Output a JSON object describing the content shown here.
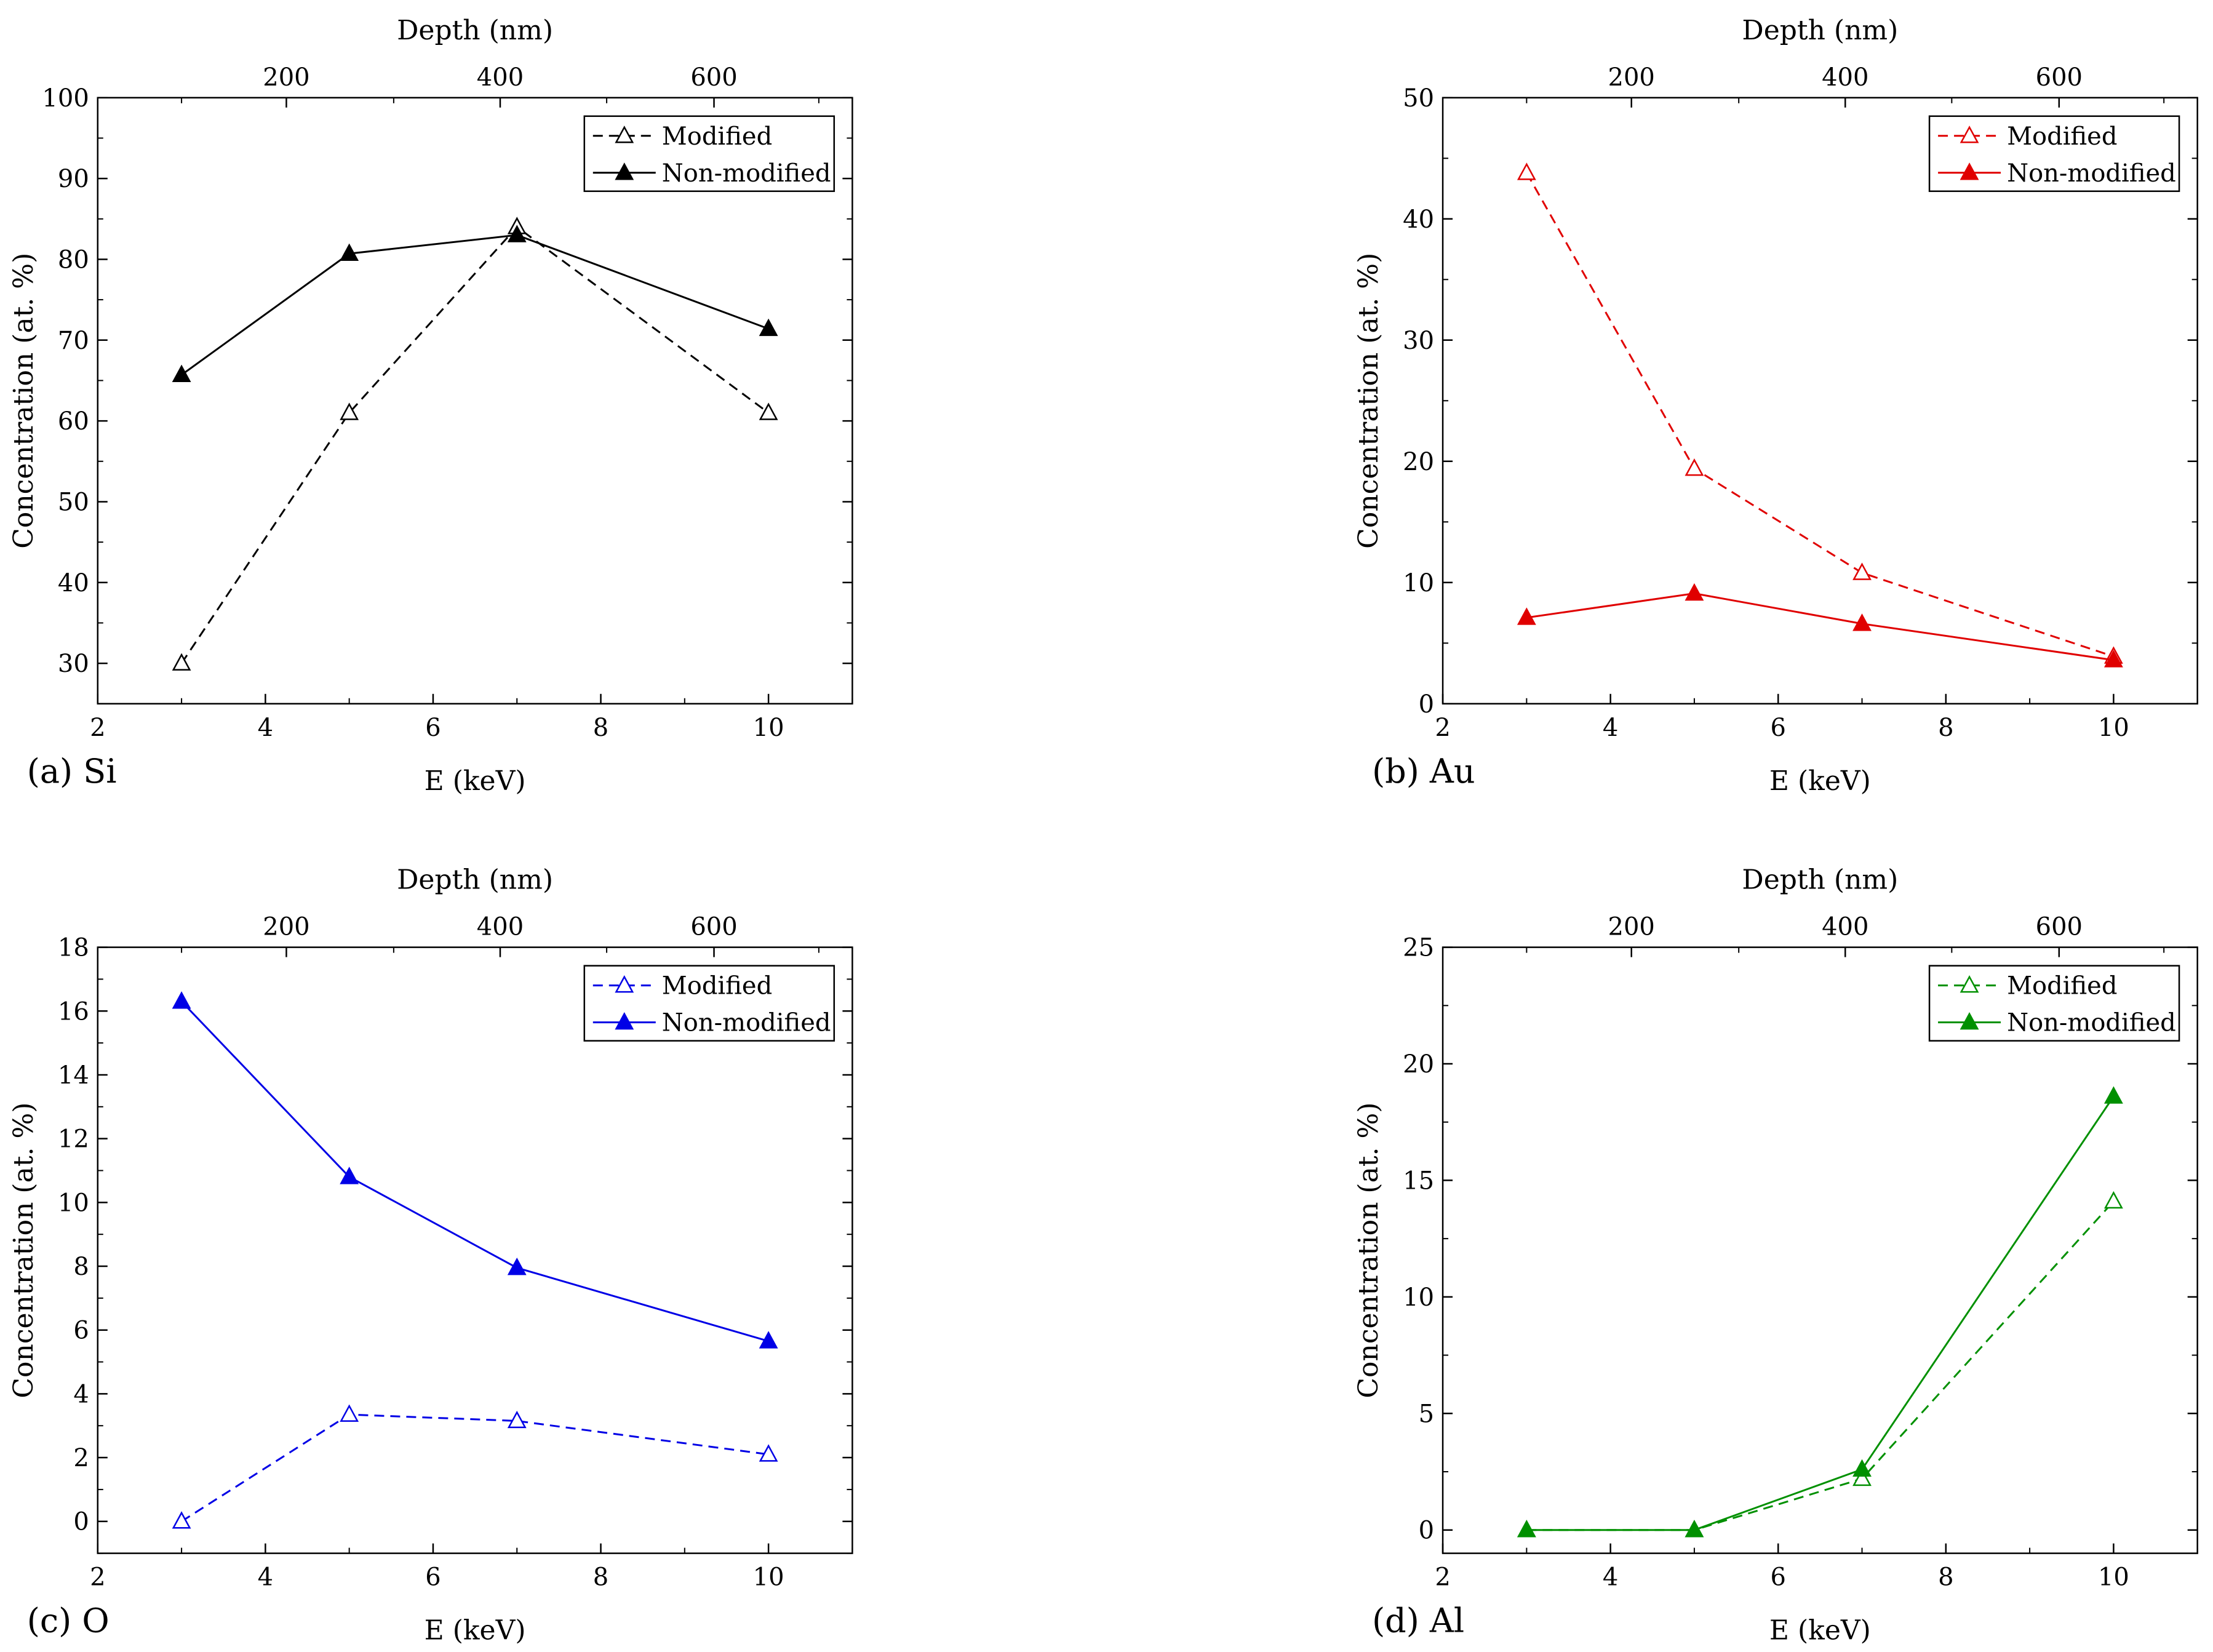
{
  "figure": {
    "shared": {
      "xlabel": "E (keV)",
      "ylabel": "Concentration (at. %)",
      "top_xlabel": "Depth (nm)",
      "x_ticks": [
        "2",
        "4",
        "6",
        "8",
        "10"
      ],
      "top_ticks": [
        "200",
        "400",
        "600"
      ]
    }
  },
  "chart_data": [
    {
      "type": "line",
      "panel_label": "(a) Si",
      "color": "#000000",
      "xlabel": "E (keV)",
      "ylabel": "Concentration (at. %)",
      "top_xlabel": "Depth (nm)",
      "xlim": [
        2,
        11
      ],
      "ylim": [
        25,
        100
      ],
      "y_ticks": [
        "30",
        "40",
        "50",
        "60",
        "70",
        "80",
        "90",
        "100"
      ],
      "x": [
        3,
        5,
        7,
        10
      ],
      "series": [
        {
          "name": "Modified",
          "style": "dashed-open",
          "values": [
            30,
            61,
            84,
            61
          ]
        },
        {
          "name": "Non-modified",
          "style": "solid-filled",
          "values": [
            65.7,
            80.7,
            83,
            71.4
          ]
        }
      ]
    },
    {
      "type": "line",
      "panel_label": "(b) Au",
      "color": "#e00000",
      "xlabel": "E (keV)",
      "ylabel": "Concentration (at. %)",
      "top_xlabel": "Depth (nm)",
      "xlim": [
        2,
        11
      ],
      "ylim": [
        0,
        50
      ],
      "y_ticks": [
        "0",
        "10",
        "20",
        "30",
        "40",
        "50"
      ],
      "x": [
        3,
        5,
        7,
        10
      ],
      "series": [
        {
          "name": "Modified",
          "style": "dashed-open",
          "values": [
            43.8,
            19.4,
            10.8,
            3.9
          ]
        },
        {
          "name": "Non-modified",
          "style": "solid-filled",
          "values": [
            7.1,
            9.1,
            6.6,
            3.6
          ]
        }
      ]
    },
    {
      "type": "line",
      "panel_label": "(c) O",
      "color": "#0000e6",
      "xlabel": "E (keV)",
      "ylabel": "Concentration (at. %)",
      "top_xlabel": "Depth (nm)",
      "xlim": [
        2,
        11
      ],
      "ylim": [
        -1,
        18
      ],
      "y_ticks": [
        "0",
        "2",
        "4",
        "6",
        "8",
        "10",
        "12",
        "14",
        "16",
        "18"
      ],
      "x": [
        3,
        5,
        7,
        10
      ],
      "series": [
        {
          "name": "Modified",
          "style": "dashed-open",
          "values": [
            0,
            3.35,
            3.15,
            2.1
          ]
        },
        {
          "name": "Non-modified",
          "style": "solid-filled",
          "values": [
            16.3,
            10.8,
            7.95,
            5.65
          ]
        }
      ]
    },
    {
      "type": "line",
      "panel_label": "(d) Al",
      "color": "#009000",
      "xlabel": "E (keV)",
      "ylabel": "Concentration (at. %)",
      "top_xlabel": "Depth (nm)",
      "xlim": [
        2,
        11
      ],
      "ylim": [
        -1,
        25
      ],
      "y_ticks": [
        "0",
        "5",
        "10",
        "15",
        "20",
        "25"
      ],
      "x": [
        3,
        5,
        7,
        10
      ],
      "series": [
        {
          "name": "Modified",
          "style": "dashed-open",
          "values": [
            0,
            0,
            2.2,
            14.1
          ]
        },
        {
          "name": "Non-modified",
          "style": "solid-filled",
          "values": [
            0,
            0,
            2.6,
            18.6
          ]
        }
      ]
    }
  ]
}
